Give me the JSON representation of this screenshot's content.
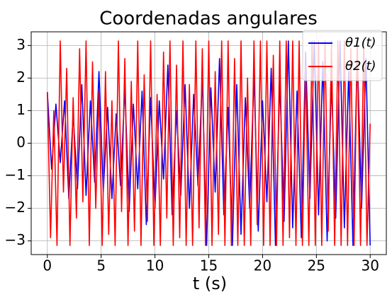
{
  "chart_data": {
    "type": "line",
    "title": "Coordenadas angulares",
    "xlabel": "t (s)",
    "ylabel": "",
    "xlim": [
      -1.5,
      31.5
    ],
    "ylim": [
      -3.42,
      3.42
    ],
    "xticks": [
      0,
      5,
      10,
      15,
      20,
      25,
      30
    ],
    "xtick_labels": [
      "0",
      "5",
      "10",
      "15",
      "20",
      "25",
      "30"
    ],
    "yticks": [
      -3,
      -2,
      -1,
      0,
      1,
      2,
      3
    ],
    "ytick_labels": [
      "−3",
      "−2",
      "−1",
      "0",
      "1",
      "2",
      "3"
    ],
    "grid": true,
    "legend_position": "top-right",
    "series": [
      {
        "name": "θ1(t)",
        "color": "#0000ff",
        "x": [
          0,
          0.4,
          0.8,
          1.2,
          1.6,
          2.0,
          2.4,
          2.8,
          3.2,
          3.6,
          4.0,
          4.4,
          4.8,
          5.2,
          5.6,
          6.0,
          6.4,
          6.8,
          7.2,
          7.6,
          8.0,
          8.4,
          8.8,
          9.2,
          9.6,
          10.0,
          10.4,
          10.8,
          11.2,
          11.6,
          12.0,
          12.4,
          12.8,
          13.2,
          13.6,
          14.0,
          14.4,
          14.8,
          15.2,
          15.6,
          16.0,
          16.4,
          16.8,
          17.2,
          17.6,
          18.0,
          18.4,
          18.8,
          19.2,
          19.6,
          20.0,
          20.4,
          20.8,
          21.2,
          21.6,
          22.0,
          22.4,
          22.8,
          23.2,
          23.6,
          24.0,
          24.4,
          24.8,
          25.2,
          25.6,
          26.0,
          26.4,
          26.8,
          27.2,
          27.6,
          28.0,
          28.4,
          28.8,
          29.2,
          29.6,
          30.0
        ],
        "values": [
          1.57,
          -0.8,
          1.2,
          -0.6,
          1.3,
          -1.7,
          0.9,
          -1.4,
          1.8,
          -1.6,
          1.3,
          -1.2,
          2.2,
          -1.5,
          1.1,
          -1.7,
          0.9,
          -1.3,
          1.7,
          -2.1,
          1.2,
          -1.4,
          1.6,
          -2.5,
          1.4,
          -2.0,
          1.3,
          -1.1,
          2.4,
          -2.2,
          1.0,
          -1.6,
          1.8,
          -2.0,
          1.5,
          -1.3,
          2.0,
          -3.14,
          1.7,
          -1.5,
          2.6,
          -2.2,
          1.1,
          -3.14,
          1.8,
          -2.8,
          1.4,
          -2.0,
          2.1,
          -2.7,
          1.3,
          -1.8,
          2.3,
          -3.14,
          1.9,
          -2.4,
          3.14,
          -2.6,
          1.6,
          -2.9,
          2.8,
          -1.7,
          3.14,
          -2.2,
          2.5,
          -3.0,
          1.9,
          -2.3,
          3.14,
          -2.6,
          2.2,
          -3.14,
          2.8,
          -2.0,
          2.6,
          -3.14
        ]
      },
      {
        "name": "θ2(t)",
        "color": "#ff0000",
        "x": [
          0,
          0.3,
          0.6,
          0.9,
          1.2,
          1.5,
          1.8,
          2.1,
          2.4,
          2.7,
          3.0,
          3.3,
          3.6,
          3.9,
          4.2,
          4.5,
          4.8,
          5.1,
          5.4,
          5.7,
          6.0,
          6.3,
          6.6,
          6.9,
          7.2,
          7.5,
          7.8,
          8.1,
          8.4,
          8.7,
          9.0,
          9.3,
          9.6,
          9.9,
          10.2,
          10.5,
          10.8,
          11.1,
          11.4,
          11.7,
          12.0,
          12.3,
          12.6,
          12.9,
          13.2,
          13.5,
          13.8,
          14.1,
          14.4,
          14.7,
          15.0,
          15.3,
          15.6,
          15.9,
          16.2,
          16.5,
          16.8,
          17.1,
          17.4,
          17.7,
          18.0,
          18.3,
          18.6,
          18.9,
          19.2,
          19.5,
          19.8,
          20.1,
          20.4,
          20.7,
          21.0,
          21.3,
          21.6,
          21.9,
          22.2,
          22.5,
          22.8,
          23.1,
          23.4,
          23.7,
          24.0,
          24.3,
          24.6,
          24.9,
          25.2,
          25.5,
          25.8,
          26.1,
          26.4,
          26.7,
          27.0,
          27.3,
          27.6,
          27.9,
          28.2,
          28.5,
          28.8,
          29.1,
          29.4,
          29.7,
          30.0
        ],
        "values": [
          1.57,
          -2.9,
          1.0,
          -3.14,
          3.14,
          -1.5,
          2.3,
          -3.14,
          1.4,
          -2.3,
          2.9,
          -1.8,
          3.14,
          -3.14,
          2.5,
          -2.0,
          1.6,
          -3.14,
          2.2,
          -2.8,
          1.3,
          -3.14,
          3.14,
          -2.1,
          2.6,
          -3.14,
          1.9,
          -2.7,
          3.14,
          -3.14,
          2.1,
          -2.4,
          3.14,
          -3.14,
          1.5,
          -3.14,
          2.8,
          -2.3,
          3.14,
          -3.14,
          2.4,
          -2.9,
          3.14,
          -3.14,
          1.8,
          -3.14,
          3.14,
          -2.6,
          2.9,
          -3.14,
          3.14,
          -3.14,
          2.2,
          -2.8,
          3.14,
          -3.14,
          3.14,
          -3.14,
          2.6,
          -3.14,
          3.14,
          -3.14,
          2.0,
          -3.14,
          3.14,
          -2.5,
          3.14,
          -3.14,
          3.14,
          -3.14,
          2.7,
          -3.14,
          3.14,
          -3.14,
          3.14,
          -2.9,
          3.14,
          -3.14,
          3.14,
          -3.14,
          2.4,
          -3.14,
          3.14,
          -3.14,
          3.14,
          -3.14,
          3.14,
          -2.7,
          3.14,
          -3.14,
          3.14,
          -3.14,
          3.14,
          -3.14,
          2.9,
          -3.14,
          3.14,
          -3.14,
          3.14,
          -3.14,
          0.6
        ]
      }
    ]
  }
}
